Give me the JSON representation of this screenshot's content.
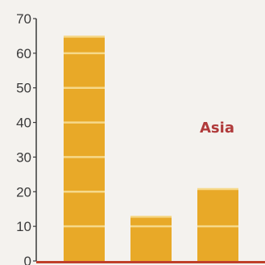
{
  "chart_data": {
    "type": "bar",
    "categories": [
      "",
      "",
      ""
    ],
    "values": [
      65,
      13,
      21
    ],
    "title": "",
    "xlabel": "",
    "ylabel": "",
    "ylim": [
      0,
      70
    ],
    "yticks": [
      "0",
      "10",
      "20",
      "30",
      "40",
      "50",
      "60",
      "70"
    ],
    "grid": false,
    "annotation": "Asia",
    "colors": {
      "bar": "#e8a928",
      "bar_stripe": "#f6d98a",
      "axis": "#3a3a3a",
      "baseline": "#c0402a",
      "annotation": "#b03a3a",
      "background": "#f4f2ee"
    }
  }
}
